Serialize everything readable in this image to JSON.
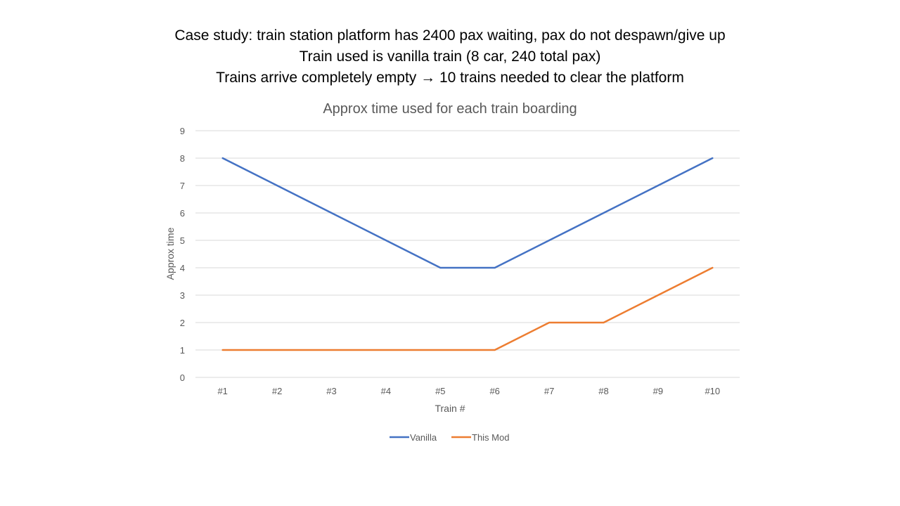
{
  "heading": {
    "line1": "Case study: train station platform has 2400 pax waiting, pax do not despawn/give up",
    "line2": "Train used is vanilla train (8 car, 240 total pax)",
    "line3": "Trains arrive completely empty → 10 trains needed to clear the platform"
  },
  "colors": {
    "vanilla": "#4472C4",
    "this_mod": "#ED7D31",
    "grid": "#D9D9D9",
    "text": "#595959"
  },
  "chart_data": {
    "type": "line",
    "title": "Approx time used for each train boarding",
    "xlabel": "Train #",
    "ylabel": "Approx time",
    "categories": [
      "#1",
      "#2",
      "#3",
      "#4",
      "#5",
      "#6",
      "#7",
      "#8",
      "#9",
      "#10"
    ],
    "ylim": [
      0,
      9
    ],
    "yticks": [
      0,
      1,
      2,
      3,
      4,
      5,
      6,
      7,
      8,
      9
    ],
    "grid": true,
    "legend_position": "bottom",
    "series": [
      {
        "name": "Vanilla",
        "values": [
          8,
          7,
          6,
          5,
          4,
          4,
          5,
          6,
          7,
          8
        ]
      },
      {
        "name": "This Mod",
        "values": [
          1,
          1,
          1,
          1,
          1,
          1,
          2,
          2,
          3,
          4
        ]
      }
    ]
  }
}
